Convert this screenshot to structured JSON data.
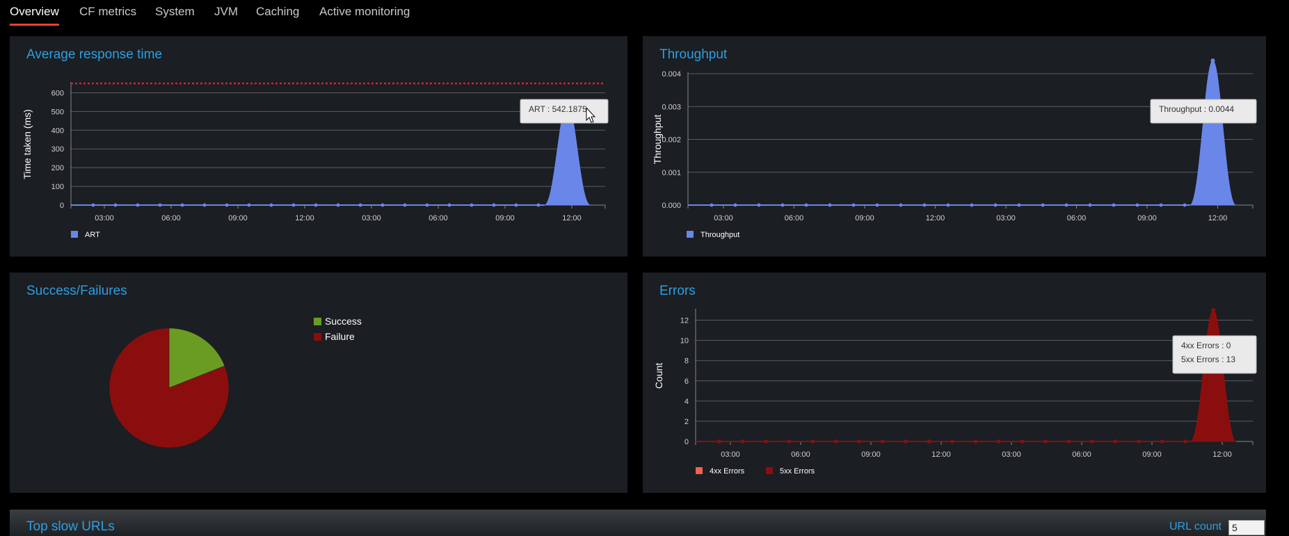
{
  "tabs": [
    {
      "label": "Overview",
      "active": true
    },
    {
      "label": "CF metrics",
      "active": false
    },
    {
      "label": "System",
      "active": false
    },
    {
      "label": "JVM",
      "active": false
    },
    {
      "label": "Caching",
      "active": false
    },
    {
      "label": "Active monitoring",
      "active": false
    }
  ],
  "panels": {
    "art": {
      "title": "Average response time"
    },
    "throughput": {
      "title": "Throughput"
    },
    "success": {
      "title": "Success/Failures"
    },
    "errors": {
      "title": "Errors"
    },
    "slow_urls": {
      "title": "Top slow URLs",
      "url_count_label": "URL count",
      "url_count_value": "5"
    }
  },
  "tooltips": {
    "art": "ART : 542.1875",
    "throughput": "Throughput : 0.0044",
    "errors_4xx": "4xx Errors : 0",
    "errors_5xx": "5xx Errors : 13"
  },
  "colors": {
    "accent": "#2e9fe0",
    "active_tab": "#e8442e",
    "series_blue": "#6a86e8",
    "threshold_red": "#e0202a",
    "success_green": "#6a9b22",
    "failure_red": "#8b0e0e",
    "errors_4xx": "#f0634f",
    "errors_5xx": "#8b0e0e"
  },
  "icons": {
    "expand": "double-chevron-down-icon",
    "cursor": "mouse-pointer-icon"
  },
  "chart_data": [
    {
      "id": "art",
      "type": "area",
      "title": "Average response time",
      "ylabel": "Time taken (ms)",
      "xlabel": "",
      "ylim": [
        0,
        650
      ],
      "yticks": [
        0,
        100,
        200,
        300,
        400,
        500,
        600
      ],
      "xticks": [
        "03:00",
        "06:00",
        "09:00",
        "12:00",
        "03:00",
        "06:00",
        "09:00",
        "12:00"
      ],
      "x_hours": [
        0,
        24
      ],
      "threshold": 650,
      "grid": true,
      "legend_position": "bottom-left",
      "series": [
        {
          "name": "ART",
          "peak_at_hour": 22.3,
          "peak_value": 542.1875,
          "baseline": 0
        }
      ]
    },
    {
      "id": "throughput",
      "type": "area",
      "title": "Throughput",
      "ylabel": "Throughput",
      "xlabel": "",
      "ylim": [
        0,
        0.004
      ],
      "yticks": [
        "0.000",
        "0.001",
        "0.002",
        "0.003",
        "0.004"
      ],
      "xticks": [
        "03:00",
        "06:00",
        "09:00",
        "12:00",
        "03:00",
        "06:00",
        "09:00",
        "12:00"
      ],
      "x_hours": [
        0,
        24
      ],
      "grid": true,
      "legend_position": "bottom-left",
      "series": [
        {
          "name": "Throughput",
          "peak_at_hour": 22.3,
          "peak_value": 0.0044,
          "baseline": 0
        }
      ]
    },
    {
      "id": "success",
      "type": "pie",
      "title": "Success/Failures",
      "legend_position": "right",
      "slices": [
        {
          "name": "Success",
          "value": 19
        },
        {
          "name": "Failure",
          "value": 81
        }
      ]
    },
    {
      "id": "errors",
      "type": "area",
      "title": "Errors",
      "ylabel": "Count",
      "xlabel": "",
      "ylim": [
        0,
        13
      ],
      "yticks": [
        0,
        2,
        4,
        6,
        8,
        10,
        12
      ],
      "xticks": [
        "03:00",
        "06:00",
        "09:00",
        "12:00",
        "03:00",
        "06:00",
        "09:00",
        "12:00"
      ],
      "x_hours": [
        0,
        24
      ],
      "grid": true,
      "legend_position": "bottom-left",
      "series": [
        {
          "name": "4xx Errors",
          "peak_at_hour": 22.3,
          "peak_value": 0,
          "baseline": 0
        },
        {
          "name": "5xx Errors",
          "peak_at_hour": 22.3,
          "peak_value": 13,
          "baseline": 0
        }
      ]
    }
  ]
}
